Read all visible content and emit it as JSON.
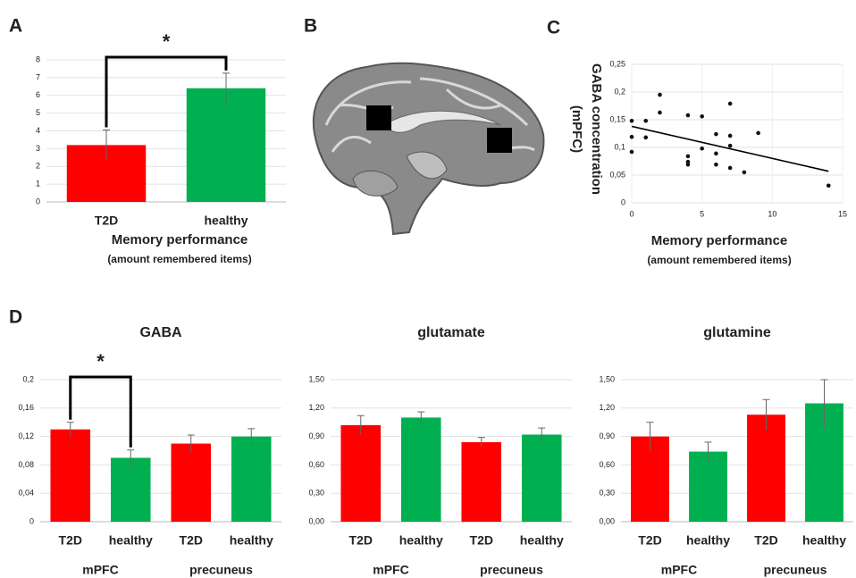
{
  "panel_labels": [
    "A",
    "B",
    "C",
    "D"
  ],
  "chart_data": [
    {
      "type": "bar",
      "categories": [
        "T2D",
        "healthy"
      ],
      "values": [
        3.2,
        6.4
      ],
      "error": [
        0.85,
        0.85
      ],
      "colors": [
        "#ff0000",
        "#00b050"
      ],
      "ylim": [
        0,
        8
      ],
      "yticks": [
        0,
        1,
        2,
        3,
        4,
        5,
        6,
        7,
        8
      ],
      "grid": true,
      "xlabel": "Memory performance",
      "xlabel_note": "(amount remembered items)",
      "annotation": "*"
    },
    {
      "type": "scatter",
      "ylabel": "GABA concentration",
      "ylabel_note": "(mPFC)",
      "xlabel": "Memory performance",
      "xlabel_note": "(amount remembered items)",
      "x": [
        0,
        0,
        0,
        1,
        1,
        2,
        2,
        4,
        4,
        4,
        4,
        5,
        5,
        6,
        6,
        6,
        7,
        7,
        7,
        7,
        8,
        9,
        14
      ],
      "y": [
        0.148,
        0.119,
        0.092,
        0.148,
        0.118,
        0.195,
        0.163,
        0.158,
        0.084,
        0.074,
        0.069,
        0.156,
        0.098,
        0.124,
        0.089,
        0.069,
        0.179,
        0.121,
        0.103,
        0.063,
        0.055,
        0.126,
        0.031
      ],
      "color": "#111111",
      "trendline": {
        "x": [
          0,
          14
        ],
        "y": [
          0.138,
          0.057
        ]
      },
      "xlim": [
        0,
        15
      ],
      "xticks": [
        0,
        5,
        10,
        15
      ],
      "ylim": [
        0,
        0.25
      ],
      "yticks": [
        0,
        {
          "value": 0.05,
          "label": "0,05"
        },
        {
          "value": 0.1,
          "label": "0,1"
        },
        {
          "value": 0.15,
          "label": "0,15"
        },
        {
          "value": 0.2,
          "label": "0,2"
        },
        {
          "value": 0.25,
          "label": "0,25"
        }
      ],
      "grid": true
    },
    {
      "type": "bar",
      "title": "GABA",
      "categories": [
        "T2D",
        "healthy",
        "T2D",
        "healthy"
      ],
      "group_labels": [
        "mPFC",
        "precuneus"
      ],
      "values": [
        0.13,
        0.09,
        0.11,
        0.12
      ],
      "error": [
        0.01,
        0.011,
        0.012,
        0.011
      ],
      "colors": [
        "#ff0000",
        "#00b050",
        "#ff0000",
        "#00b050"
      ],
      "ylim": [
        0,
        0.2
      ],
      "yticks": [
        0,
        {
          "value": 0.04,
          "label": "0,04"
        },
        {
          "value": 0.08,
          "label": "0,08"
        },
        {
          "value": 0.12,
          "label": "0,12"
        },
        {
          "value": 0.16,
          "label": "0,16"
        },
        {
          "value": 0.2,
          "label": "0,2"
        }
      ],
      "grid": true,
      "annotation": "*"
    },
    {
      "type": "bar",
      "title": "glutamate",
      "categories": [
        "T2D",
        "healthy",
        "T2D",
        "healthy"
      ],
      "group_labels": [
        "mPFC",
        "precuneus"
      ],
      "values": [
        1.02,
        1.1,
        0.84,
        0.92
      ],
      "error": [
        0.1,
        0.06,
        0.05,
        0.07
      ],
      "colors": [
        "#ff0000",
        "#00b050",
        "#ff0000",
        "#00b050"
      ],
      "ylim": [
        0,
        1.5
      ],
      "yticks": [
        {
          "value": 0,
          "label": "0,00"
        },
        {
          "value": 0.3,
          "label": "0,30"
        },
        {
          "value": 0.6,
          "label": "0,60"
        },
        {
          "value": 0.9,
          "label": "0,90"
        },
        {
          "value": 1.2,
          "label": "1,20"
        },
        {
          "value": 1.5,
          "label": "1,50"
        }
      ],
      "grid": true
    },
    {
      "type": "bar",
      "title": "glutamine",
      "categories": [
        "T2D",
        "healthy",
        "T2D",
        "healthy"
      ],
      "group_labels": [
        "mPFC",
        "precuneus"
      ],
      "values": [
        0.9,
        0.74,
        1.13,
        1.25
      ],
      "error": [
        0.15,
        0.1,
        0.16,
        0.25
      ],
      "colors": [
        "#ff0000",
        "#00b050",
        "#ff0000",
        "#00b050"
      ],
      "ylim": [
        0,
        1.5
      ],
      "yticks": [
        {
          "value": 0,
          "label": "0,00"
        },
        {
          "value": 0.3,
          "label": "0,30"
        },
        {
          "value": 0.6,
          "label": "0,60"
        },
        {
          "value": 0.9,
          "label": "0,90"
        },
        {
          "value": 1.2,
          "label": "1,20"
        },
        {
          "value": 1.5,
          "label": "1,50"
        }
      ],
      "grid": true
    }
  ]
}
